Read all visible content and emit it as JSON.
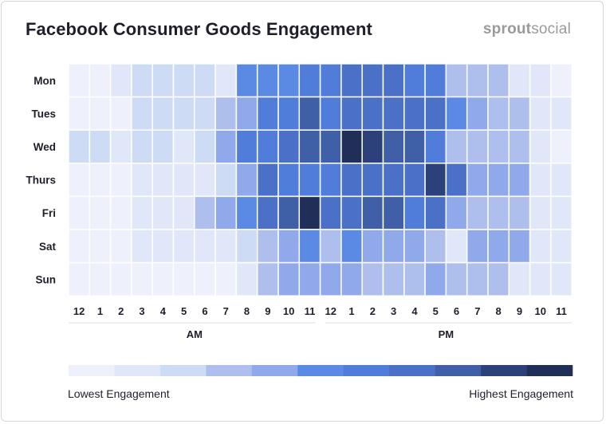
{
  "title": "Facebook Consumer Goods Engagement",
  "brand": {
    "part1": "sprout",
    "part2": "social"
  },
  "palette": [
    "#eef1fb",
    "#e0e7f8",
    "#cddcf4",
    "#aebfee",
    "#8fa9ea",
    "#5a8ae4",
    "#4f7dd9",
    "#4a70c7",
    "#3f5fa6",
    "#2c4179",
    "#1f2f58"
  ],
  "legend": {
    "low": "Lowest Engagement",
    "high": "Highest Engagement"
  },
  "chart_data": {
    "type": "heatmap",
    "title": "Facebook Consumer Goods Engagement",
    "rows": [
      "Mon",
      "Tues",
      "Wed",
      "Thurs",
      "Fri",
      "Sat",
      "Sun"
    ],
    "columns": [
      "12",
      "1",
      "2",
      "3",
      "4",
      "5",
      "6",
      "7",
      "8",
      "9",
      "10",
      "11",
      "12",
      "1",
      "2",
      "3",
      "4",
      "5",
      "6",
      "7",
      "8",
      "9",
      "10",
      "11"
    ],
    "period_labels": [
      "AM",
      "PM"
    ],
    "scale": {
      "min": 0,
      "max": 10,
      "low_label": "Lowest Engagement",
      "high_label": "Highest Engagement"
    },
    "values": [
      [
        0,
        0,
        1,
        2,
        2,
        2,
        2,
        1,
        5,
        5,
        5,
        6,
        6,
        7,
        7,
        7,
        6,
        6,
        3,
        3,
        3,
        1,
        1,
        0
      ],
      [
        0,
        0,
        0,
        2,
        2,
        2,
        2,
        3,
        4,
        6,
        6,
        8,
        6,
        7,
        7,
        7,
        7,
        7,
        5,
        4,
        3,
        3,
        1,
        1
      ],
      [
        2,
        2,
        1,
        2,
        2,
        1,
        2,
        4,
        6,
        6,
        7,
        8,
        8,
        10,
        9,
        8,
        8,
        6,
        3,
        3,
        3,
        3,
        1,
        0
      ],
      [
        0,
        0,
        0,
        1,
        1,
        1,
        1,
        2,
        4,
        7,
        6,
        6,
        6,
        7,
        7,
        7,
        7,
        9,
        7,
        4,
        4,
        4,
        1,
        1
      ],
      [
        0,
        0,
        0,
        1,
        1,
        1,
        3,
        4,
        5,
        7,
        8,
        10,
        7,
        7,
        8,
        8,
        6,
        7,
        4,
        3,
        3,
        3,
        1,
        1
      ],
      [
        0,
        0,
        0,
        1,
        1,
        1,
        1,
        1,
        2,
        3,
        4,
        5,
        3,
        5,
        4,
        4,
        4,
        3,
        1,
        4,
        4,
        4,
        1,
        1
      ],
      [
        0,
        0,
        0,
        0,
        0,
        0,
        0,
        0,
        1,
        3,
        4,
        4,
        4,
        4,
        3,
        3,
        3,
        4,
        3,
        3,
        3,
        1,
        1,
        1
      ]
    ]
  }
}
